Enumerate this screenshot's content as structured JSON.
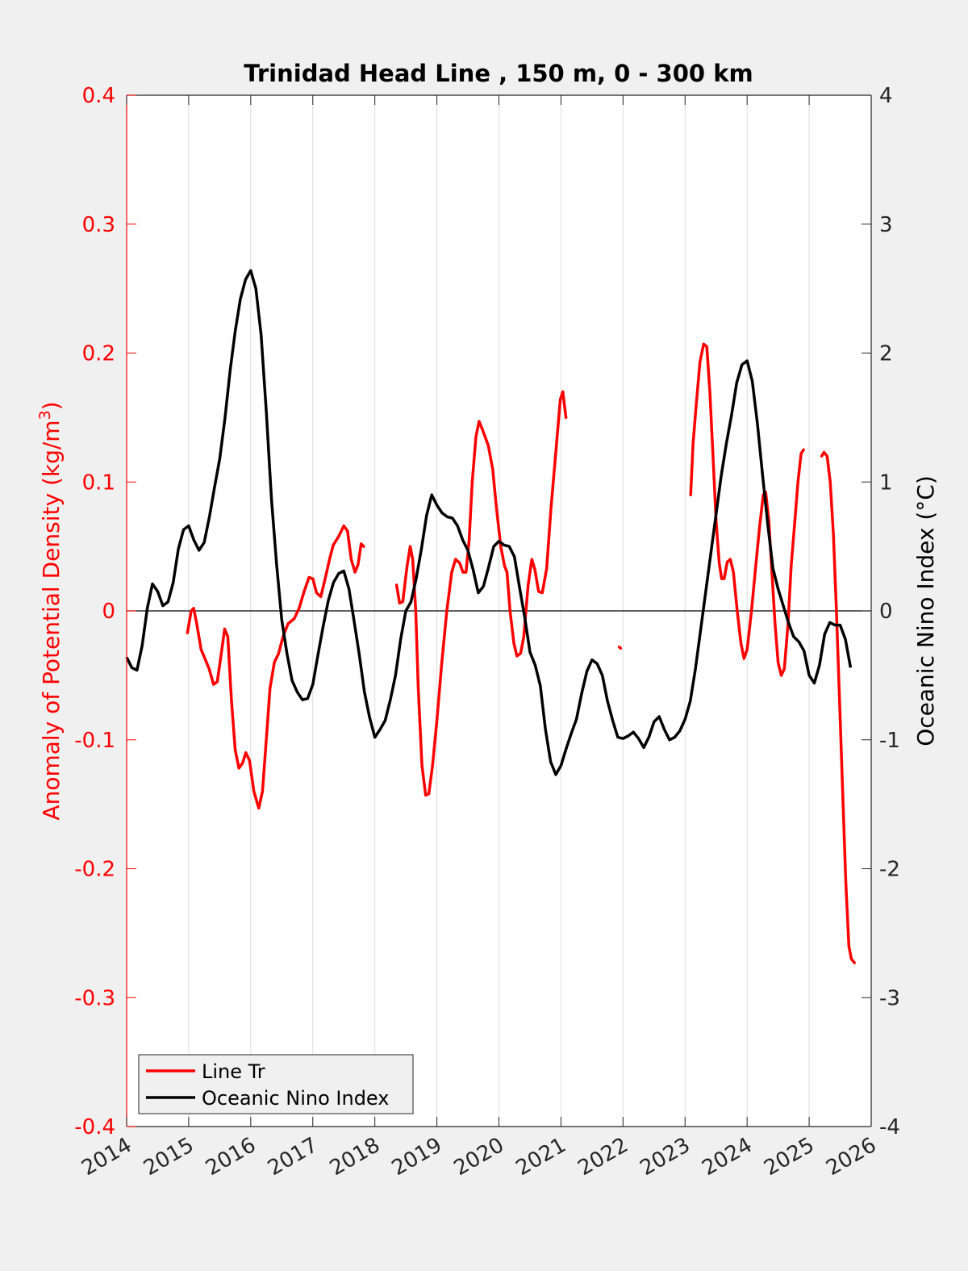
{
  "chart_data": {
    "type": "line",
    "title": "Trinidad Head Line , 150 m, 0 - 300 km",
    "xlabel": "",
    "ylabel_left": "Anomaly of Potential Density (kg/m³)",
    "ylabel_left_base": "Anomaly of Potential Density (kg/m",
    "ylabel_left_sup": "3",
    "ylabel_left_tail": ")",
    "ylabel_right": "Oceanic Nino Index (°C)",
    "xlim": [
      2014,
      2026
    ],
    "ylim_left": [
      -0.4,
      0.4
    ],
    "ylim_right": [
      -4,
      4
    ],
    "x_ticks": [
      "2014",
      "2015",
      "2016",
      "2017",
      "2018",
      "2019",
      "2020",
      "2021",
      "2022",
      "2023",
      "2024",
      "2025",
      "2026"
    ],
    "y_ticks_left": [
      "0.4",
      "0.3",
      "0.2",
      "0.1",
      "0",
      "-0.1",
      "-0.2",
      "-0.3",
      "-0.4"
    ],
    "y_ticks_right": [
      "4",
      "3",
      "2",
      "1",
      "0",
      "-1",
      "-2",
      "-3",
      "-4"
    ],
    "grid": "vertical",
    "zero_line": true,
    "legend_position": "bottom-left",
    "colors": {
      "line_tr": "#ff0000",
      "oni": "#000000",
      "left_axis": "#ff0000",
      "right_axis": "#000000"
    },
    "series": [
      {
        "name": "Line Tr",
        "axis": "left",
        "segments": [
          [
            [
              2014.98,
              -0.017
            ],
            [
              2015.04,
              0.0
            ],
            [
              2015.08,
              0.002
            ],
            [
              2015.13,
              -0.01
            ],
            [
              2015.2,
              -0.03
            ],
            [
              2015.27,
              -0.038
            ],
            [
              2015.33,
              -0.045
            ],
            [
              2015.4,
              -0.057
            ],
            [
              2015.46,
              -0.055
            ],
            [
              2015.52,
              -0.035
            ],
            [
              2015.58,
              -0.014
            ],
            [
              2015.63,
              -0.02
            ],
            [
              2015.69,
              -0.07
            ],
            [
              2015.75,
              -0.108
            ],
            [
              2015.81,
              -0.122
            ],
            [
              2015.87,
              -0.118
            ],
            [
              2015.92,
              -0.11
            ],
            [
              2015.98,
              -0.116
            ],
            [
              2016.05,
              -0.14
            ],
            [
              2016.13,
              -0.153
            ],
            [
              2016.19,
              -0.14
            ],
            [
              2016.25,
              -0.1
            ],
            [
              2016.31,
              -0.06
            ],
            [
              2016.38,
              -0.04
            ],
            [
              2016.45,
              -0.033
            ],
            [
              2016.52,
              -0.02
            ],
            [
              2016.6,
              -0.01
            ],
            [
              2016.7,
              -0.006
            ],
            [
              2016.78,
              0.002
            ],
            [
              2016.86,
              0.015
            ],
            [
              2016.94,
              0.026
            ],
            [
              2017.0,
              0.025
            ],
            [
              2017.06,
              0.014
            ],
            [
              2017.13,
              0.011
            ],
            [
              2017.2,
              0.025
            ],
            [
              2017.27,
              0.04
            ],
            [
              2017.33,
              0.051
            ],
            [
              2017.42,
              0.058
            ],
            [
              2017.5,
              0.066
            ],
            [
              2017.56,
              0.062
            ],
            [
              2017.62,
              0.04
            ],
            [
              2017.68,
              0.03
            ],
            [
              2017.73,
              0.036
            ],
            [
              2017.78,
              0.052
            ],
            [
              2017.82,
              0.05
            ]
          ],
          [
            [
              2018.35,
              0.02
            ],
            [
              2018.4,
              0.006
            ],
            [
              2018.45,
              0.007
            ],
            [
              2018.52,
              0.035
            ],
            [
              2018.57,
              0.05
            ],
            [
              2018.61,
              0.04
            ],
            [
              2018.66,
              0.0
            ],
            [
              2018.7,
              -0.06
            ],
            [
              2018.76,
              -0.12
            ],
            [
              2018.82,
              -0.143
            ],
            [
              2018.87,
              -0.142
            ],
            [
              2018.93,
              -0.12
            ],
            [
              2019.0,
              -0.085
            ],
            [
              2019.08,
              -0.04
            ],
            [
              2019.16,
              0.0
            ],
            [
              2019.24,
              0.03
            ],
            [
              2019.3,
              0.04
            ],
            [
              2019.37,
              0.037
            ],
            [
              2019.42,
              0.03
            ],
            [
              2019.47,
              0.03
            ],
            [
              2019.52,
              0.055
            ],
            [
              2019.57,
              0.1
            ],
            [
              2019.63,
              0.135
            ],
            [
              2019.68,
              0.147
            ],
            [
              2019.74,
              0.14
            ],
            [
              2019.83,
              0.128
            ],
            [
              2019.9,
              0.11
            ],
            [
              2019.96,
              0.08
            ],
            [
              2020.03,
              0.05
            ],
            [
              2020.09,
              0.035
            ],
            [
              2020.13,
              0.03
            ],
            [
              2020.18,
              0.0
            ],
            [
              2020.24,
              -0.025
            ],
            [
              2020.29,
              -0.035
            ],
            [
              2020.35,
              -0.033
            ],
            [
              2020.4,
              -0.02
            ],
            [
              2020.47,
              0.02
            ],
            [
              2020.53,
              0.04
            ],
            [
              2020.58,
              0.032
            ],
            [
              2020.64,
              0.015
            ],
            [
              2020.7,
              0.014
            ],
            [
              2020.77,
              0.033
            ],
            [
              2020.84,
              0.08
            ],
            [
              2020.92,
              0.125
            ],
            [
              2020.99,
              0.164
            ],
            [
              2021.03,
              0.17
            ],
            [
              2021.08,
              0.15
            ]
          ],
          [
            [
              2021.94,
              -0.028
            ],
            [
              2021.96,
              -0.029
            ]
          ],
          [
            [
              2023.09,
              0.09
            ],
            [
              2023.13,
              0.13
            ],
            [
              2023.18,
              0.16
            ],
            [
              2023.24,
              0.193
            ],
            [
              2023.3,
              0.207
            ],
            [
              2023.35,
              0.205
            ],
            [
              2023.4,
              0.17
            ],
            [
              2023.45,
              0.12
            ],
            [
              2023.5,
              0.07
            ],
            [
              2023.55,
              0.037
            ],
            [
              2023.59,
              0.025
            ],
            [
              2023.63,
              0.025
            ],
            [
              2023.68,
              0.038
            ],
            [
              2023.73,
              0.04
            ],
            [
              2023.78,
              0.03
            ],
            [
              2023.84,
              0.0
            ],
            [
              2023.9,
              -0.025
            ],
            [
              2023.95,
              -0.037
            ],
            [
              2024.0,
              -0.03
            ],
            [
              2024.07,
              0.0
            ],
            [
              2024.14,
              0.035
            ],
            [
              2024.2,
              0.065
            ],
            [
              2024.26,
              0.09
            ],
            [
              2024.3,
              0.092
            ],
            [
              2024.35,
              0.07
            ],
            [
              2024.4,
              0.03
            ],
            [
              2024.45,
              -0.01
            ],
            [
              2024.5,
              -0.04
            ],
            [
              2024.55,
              -0.05
            ],
            [
              2024.6,
              -0.045
            ],
            [
              2024.66,
              -0.01
            ],
            [
              2024.71,
              0.035
            ],
            [
              2024.77,
              0.07
            ],
            [
              2024.82,
              0.1
            ],
            [
              2024.87,
              0.122
            ],
            [
              2024.91,
              0.125
            ]
          ],
          [
            [
              2025.2,
              0.12
            ],
            [
              2025.24,
              0.123
            ],
            [
              2025.29,
              0.12
            ],
            [
              2025.34,
              0.1
            ],
            [
              2025.39,
              0.06
            ],
            [
              2025.44,
              0.0
            ],
            [
              2025.49,
              -0.07
            ],
            [
              2025.54,
              -0.14
            ],
            [
              2025.59,
              -0.21
            ],
            [
              2025.64,
              -0.26
            ],
            [
              2025.68,
              -0.27
            ],
            [
              2025.73,
              -0.273
            ]
          ]
        ]
      },
      {
        "name": "Oceanic Nino Index",
        "axis": "right",
        "start": 2014.0,
        "step_months": 1,
        "values": [
          -0.36,
          -0.44,
          -0.46,
          -0.27,
          0.02,
          0.21,
          0.15,
          0.04,
          0.07,
          0.22,
          0.48,
          0.63,
          0.66,
          0.55,
          0.47,
          0.53,
          0.73,
          0.96,
          1.18,
          1.49,
          1.86,
          2.17,
          2.42,
          2.57,
          2.64,
          2.5,
          2.14,
          1.55,
          0.87,
          0.36,
          -0.07,
          -0.33,
          -0.54,
          -0.63,
          -0.69,
          -0.68,
          -0.57,
          -0.34,
          -0.12,
          0.08,
          0.22,
          0.29,
          0.31,
          0.17,
          -0.08,
          -0.34,
          -0.63,
          -0.83,
          -0.98,
          -0.92,
          -0.85,
          -0.69,
          -0.5,
          -0.22,
          0.0,
          0.07,
          0.25,
          0.48,
          0.74,
          0.9,
          0.82,
          0.76,
          0.73,
          0.72,
          0.66,
          0.55,
          0.47,
          0.32,
          0.14,
          0.19,
          0.34,
          0.5,
          0.54,
          0.51,
          0.5,
          0.42,
          0.18,
          -0.05,
          -0.32,
          -0.42,
          -0.58,
          -0.92,
          -1.17,
          -1.27,
          -1.2,
          -1.07,
          -0.95,
          -0.84,
          -0.64,
          -0.47,
          -0.38,
          -0.41,
          -0.5,
          -0.7,
          -0.85,
          -0.98,
          -0.99,
          -0.97,
          -0.94,
          -0.99,
          -1.06,
          -0.98,
          -0.86,
          -0.82,
          -0.92,
          -1.0,
          -0.98,
          -0.93,
          -0.84,
          -0.7,
          -0.45,
          -0.15,
          0.15,
          0.45,
          0.75,
          1.05,
          1.3,
          1.52,
          1.77,
          1.91,
          1.94,
          1.78,
          1.45,
          1.05,
          0.67,
          0.33,
          0.17,
          0.04,
          -0.09,
          -0.2,
          -0.24,
          -0.31,
          -0.5,
          -0.56,
          -0.42,
          -0.18,
          -0.09,
          -0.11,
          -0.11,
          -0.22,
          -0.44
        ]
      }
    ]
  },
  "legend": [
    {
      "label": "Line Tr",
      "color": "#ff0000"
    },
    {
      "label": "Oceanic Nino Index",
      "color": "#000000"
    }
  ]
}
